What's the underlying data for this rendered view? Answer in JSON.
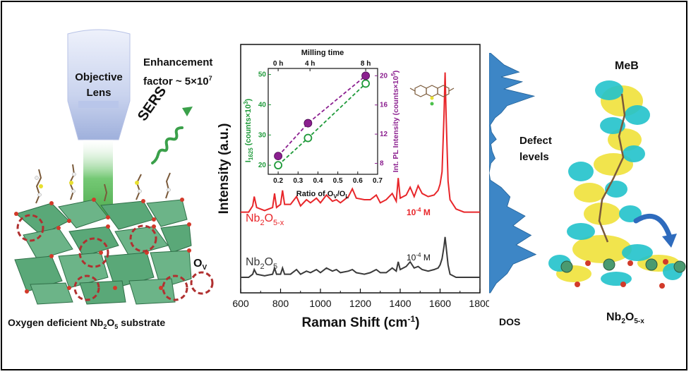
{
  "left_panel": {
    "objective_label_1": "Objective",
    "objective_label_2": "Lens",
    "enhancement_line1": "Enhancement",
    "enhancement_line2_prefix": "factor ~ 5×10",
    "enhancement_exp": "7",
    "sers_label": "SERS",
    "ov_label": "O",
    "ov_sub": "V",
    "substrate_caption_prefix": "Oxygen deficient Nb",
    "substrate_caption_sub1": "2",
    "substrate_caption_mid": "O",
    "substrate_caption_sub2": "5",
    "substrate_caption_suffix": " substrate",
    "colors": {
      "lens": "#c9d3ee",
      "beam": "#5cbf5c",
      "polyhedra": "#5aa878",
      "vacancy": "#b03030"
    }
  },
  "chart_data": [
    {
      "type": "line",
      "xlabel_prefix": "Raman Shift (cm",
      "xlabel_exp": "-1",
      "xlabel_suffix": ")",
      "ylabel": "Intensity (a.u.)",
      "xlim": [
        600,
        1800
      ],
      "x_ticks": [
        "600",
        "800",
        "1000",
        "1200",
        "1400",
        "1600",
        "1800"
      ],
      "series": [
        {
          "name": "Nb2O5-x",
          "label_main": "Nb",
          "label_sub1": "2",
          "label_mid": "O",
          "label_sub2": "5-x",
          "concentration_base": "10",
          "concentration_exp": "-4",
          "concentration_unit": " M",
          "color": "#e8262a",
          "points": [
            [
              600,
              0.52
            ],
            [
              640,
              0.52
            ],
            [
              660,
              0.56
            ],
            [
              668,
              0.62
            ],
            [
              680,
              0.55
            ],
            [
              720,
              0.53
            ],
            [
              760,
              0.55
            ],
            [
              770,
              0.64
            ],
            [
              780,
              0.55
            ],
            [
              800,
              0.57
            ],
            [
              810,
              0.66
            ],
            [
              820,
              0.57
            ],
            [
              850,
              0.57
            ],
            [
              880,
              0.62
            ],
            [
              900,
              0.56
            ],
            [
              930,
              0.6
            ],
            [
              950,
              0.58
            ],
            [
              980,
              0.61
            ],
            [
              1000,
              0.58
            ],
            [
              1030,
              0.63
            ],
            [
              1060,
              0.59
            ],
            [
              1080,
              0.6
            ],
            [
              1100,
              0.58
            ],
            [
              1140,
              0.62
            ],
            [
              1160,
              0.67
            ],
            [
              1180,
              0.61
            ],
            [
              1220,
              0.6
            ],
            [
              1250,
              0.6
            ],
            [
              1280,
              0.63
            ],
            [
              1300,
              0.58
            ],
            [
              1330,
              0.6
            ],
            [
              1360,
              0.64
            ],
            [
              1380,
              0.59
            ],
            [
              1390,
              0.74
            ],
            [
              1400,
              0.61
            ],
            [
              1430,
              0.63
            ],
            [
              1450,
              0.68
            ],
            [
              1470,
              0.62
            ],
            [
              1490,
              0.69
            ],
            [
              1510,
              0.64
            ],
            [
              1540,
              0.62
            ],
            [
              1570,
              0.63
            ],
            [
              1590,
              0.66
            ],
            [
              1600,
              0.7
            ],
            [
              1610,
              0.78
            ],
            [
              1620,
              1.15
            ],
            [
              1625,
              1.42
            ],
            [
              1630,
              1.15
            ],
            [
              1640,
              0.72
            ],
            [
              1650,
              0.6
            ],
            [
              1680,
              0.54
            ],
            [
              1720,
              0.52
            ],
            [
              1800,
              0.52
            ]
          ]
        },
        {
          "name": "Nb2O5",
          "label_main": "Nb",
          "label_sub1": "2",
          "label_mid": "O",
          "label_sub2": "5",
          "concentration_base": "10",
          "concentration_exp": "-4",
          "concentration_unit": " M",
          "color": "#3a3a3a",
          "points": [
            [
              600,
              0.1
            ],
            [
              640,
              0.1
            ],
            [
              660,
              0.12
            ],
            [
              668,
              0.15
            ],
            [
              680,
              0.12
            ],
            [
              720,
              0.11
            ],
            [
              760,
              0.12
            ],
            [
              770,
              0.16
            ],
            [
              780,
              0.12
            ],
            [
              800,
              0.12
            ],
            [
              810,
              0.16
            ],
            [
              820,
              0.12
            ],
            [
              850,
              0.12
            ],
            [
              880,
              0.15
            ],
            [
              900,
              0.12
            ],
            [
              930,
              0.14
            ],
            [
              950,
              0.13
            ],
            [
              980,
              0.15
            ],
            [
              1000,
              0.13
            ],
            [
              1030,
              0.16
            ],
            [
              1060,
              0.14
            ],
            [
              1080,
              0.15
            ],
            [
              1100,
              0.13
            ],
            [
              1140,
              0.14
            ],
            [
              1160,
              0.15
            ],
            [
              1180,
              0.13
            ],
            [
              1220,
              0.12
            ],
            [
              1250,
              0.13
            ],
            [
              1280,
              0.15
            ],
            [
              1300,
              0.13
            ],
            [
              1330,
              0.13
            ],
            [
              1360,
              0.16
            ],
            [
              1380,
              0.14
            ],
            [
              1390,
              0.2
            ],
            [
              1400,
              0.15
            ],
            [
              1430,
              0.17
            ],
            [
              1450,
              0.2
            ],
            [
              1470,
              0.16
            ],
            [
              1490,
              0.17
            ],
            [
              1510,
              0.15
            ],
            [
              1540,
              0.14
            ],
            [
              1570,
              0.15
            ],
            [
              1590,
              0.16
            ],
            [
              1600,
              0.18
            ],
            [
              1610,
              0.22
            ],
            [
              1620,
              0.3
            ],
            [
              1625,
              0.36
            ],
            [
              1630,
              0.3
            ],
            [
              1640,
              0.18
            ],
            [
              1650,
              0.12
            ],
            [
              1680,
              0.1
            ],
            [
              1720,
              0.1
            ],
            [
              1800,
              0.1
            ]
          ]
        }
      ]
    },
    {
      "type": "scatter",
      "xlabel_prefix": "Ratio of O",
      "xlabel_sub1": "V",
      "xlabel_mid": "/O",
      "xlabel_sub2": "L",
      "top_xlabel": "Milling time",
      "top_ticks": [
        "0 h",
        "4 h",
        "8 h"
      ],
      "top_tick_x": [
        0.2,
        0.36,
        0.64
      ],
      "xlim": [
        0.15,
        0.7
      ],
      "x_ticks": [
        "0.2",
        "0.3",
        "0.4",
        "0.5",
        "0.6",
        "0.7"
      ],
      "left_ylabel_prefix": "I",
      "left_ylabel_sub": "1625",
      "left_ylabel_mid": " (counts×10",
      "left_ylabel_exp": "3",
      "left_ylabel_suffix": ")",
      "left_ylim": [
        17,
        52
      ],
      "left_ticks": [
        "20",
        "30",
        "40",
        "50"
      ],
      "right_ylabel_prefix": "Int. PL Intensity (counts×10",
      "right_ylabel_exp": "5",
      "right_ylabel_suffix": ")",
      "right_ylim": [
        6.5,
        21
      ],
      "right_ticks": [
        "8",
        "12",
        "16",
        "20"
      ],
      "series": [
        {
          "name": "I1625",
          "axis": "left",
          "color": "#1f9a3a",
          "marker": "open",
          "x": [
            0.2,
            0.35,
            0.64
          ],
          "y": [
            20,
            29,
            47
          ]
        },
        {
          "name": "PL",
          "axis": "right",
          "color": "#8b1f8f",
          "marker": "filled",
          "x": [
            0.2,
            0.35,
            0.64
          ],
          "y": [
            9,
            13.5,
            20
          ]
        }
      ]
    },
    {
      "type": "area",
      "xlabel": "DOS",
      "annotation_line1": "Defect",
      "annotation_line2": "levels",
      "color": "#3d86c6",
      "orientation": "vertical",
      "points": [
        [
          0,
          0.02
        ],
        [
          0.05,
          0.25
        ],
        [
          0.08,
          0.5
        ],
        [
          0.1,
          0.2
        ],
        [
          0.12,
          0.55
        ],
        [
          0.15,
          0.25
        ],
        [
          0.18,
          0.75
        ],
        [
          0.22,
          0.3
        ],
        [
          0.25,
          0.2
        ],
        [
          0.27,
          0.1
        ],
        [
          0.3,
          0.02
        ],
        [
          0.33,
          0.04
        ],
        [
          0.36,
          0.12
        ],
        [
          0.38,
          0.03
        ],
        [
          0.41,
          0.05
        ],
        [
          0.44,
          0.1
        ],
        [
          0.46,
          0.03
        ],
        [
          0.5,
          0.0
        ],
        [
          0.53,
          0.02
        ],
        [
          0.56,
          0.2
        ],
        [
          0.6,
          0.35
        ],
        [
          0.64,
          0.3
        ],
        [
          0.68,
          0.6
        ],
        [
          0.72,
          0.4
        ],
        [
          0.76,
          0.7
        ],
        [
          0.8,
          0.45
        ],
        [
          0.84,
          0.78
        ],
        [
          0.88,
          0.4
        ],
        [
          0.92,
          0.3
        ],
        [
          0.96,
          0.12
        ],
        [
          1.0,
          0.02
        ]
      ]
    }
  ],
  "right_panel": {
    "molecule_label": "MeB",
    "substrate_label_main": "Nb",
    "substrate_label_sub1": "2",
    "substrate_label_mid": "O",
    "substrate_label_sub2": "5-x",
    "colors": {
      "density_cyan": "#22c3cc",
      "density_yellow": "#f0e23a",
      "arrow": "#2e6bbd",
      "nb_atom": "#4a9a70",
      "o_atom": "#d23a2a"
    }
  }
}
